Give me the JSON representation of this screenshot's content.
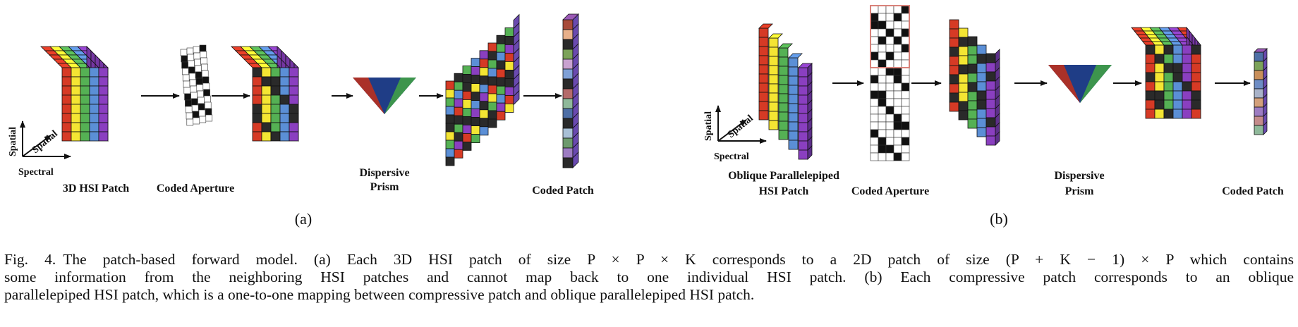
{
  "figure": {
    "panel_a": {
      "labels": {
        "patch": "3D HSI Patch",
        "aperture": "Coded Aperture",
        "prism_1": "Dispersive",
        "prism_2": "Prism",
        "coded": "Coded Patch"
      },
      "axes": {
        "spatial_v": "Spatial",
        "spatial_d": "Spatial",
        "spectral": "Spectral"
      },
      "tag": "(a)"
    },
    "panel_b": {
      "labels": {
        "patch_1": "Oblique Parallelepiped",
        "patch_2": "HSI Patch",
        "aperture": "Coded Aperture",
        "prism_1": "Dispersive",
        "prism_2": "Prism",
        "coded": "Coded Patch"
      },
      "axes": {
        "spatial_v": "Spatial",
        "spatial_d": "Spatial",
        "spectral": "Spectral"
      },
      "tag": "(b)"
    },
    "band_colors": [
      "#d63a25",
      "#f4e533",
      "#55b154",
      "#5b8fd6",
      "#8a3fc0"
    ],
    "prism_colors": [
      "#b23024",
      "#1f3d86",
      "#3f9a4a"
    ]
  },
  "caption": {
    "label": "Fig. 4.",
    "line1": "The patch-based forward model. (a) Each 3D HSI patch of size P × P × K corresponds to a 2D patch of size (P + K − 1) × P which contains",
    "line2": "some information from the neighboring HSI patches and cannot map back to one individual HSI patch. (b) Each compressive patch corresponds to an oblique",
    "line3": "parallelepiped HSI patch, which is a one-to-one mapping between compressive patch and oblique parallelepiped HSI patch."
  }
}
